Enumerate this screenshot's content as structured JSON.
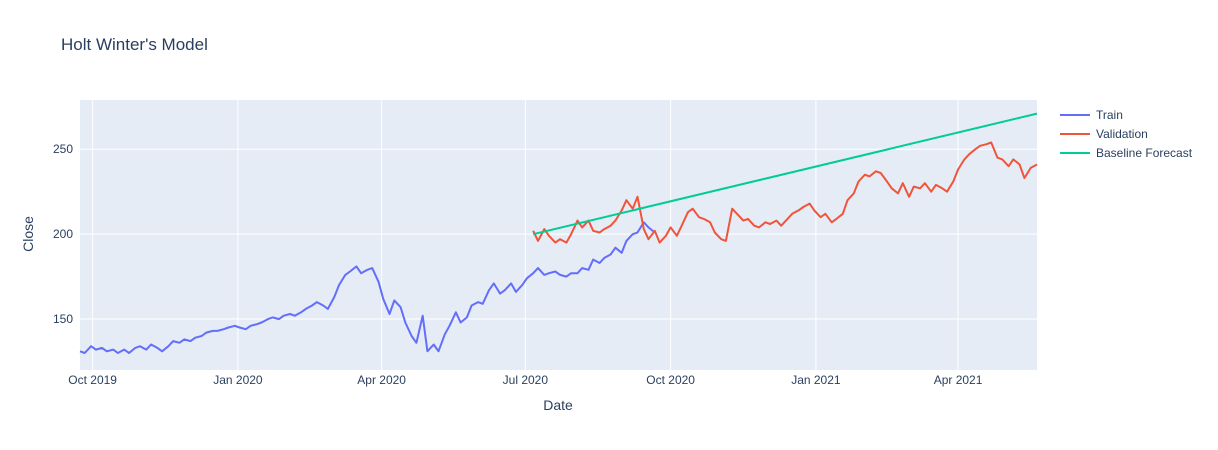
{
  "chart_data": {
    "type": "line",
    "title": "Holt Winter's Model",
    "xlabel": "Date",
    "ylabel": "Close",
    "xlim": [
      "2019-09-23",
      "2021-05-21"
    ],
    "ylim": [
      120,
      279
    ],
    "grid": true,
    "legend_position": "top-right, outside plot",
    "background_color": "#E5ECF6",
    "x_ticks": [
      {
        "date": "2019-10-01",
        "label": "Oct 2019"
      },
      {
        "date": "2020-01-01",
        "label": "Jan 2020"
      },
      {
        "date": "2020-04-01",
        "label": "Apr 2020"
      },
      {
        "date": "2020-07-01",
        "label": "Jul 2020"
      },
      {
        "date": "2020-10-01",
        "label": "Oct 2020"
      },
      {
        "date": "2021-01-01",
        "label": "Jan 2021"
      },
      {
        "date": "2021-04-01",
        "label": "Apr 2021"
      }
    ],
    "y_ticks": [
      {
        "value": 150,
        "label": "150"
      },
      {
        "value": 200,
        "label": "200"
      },
      {
        "value": 250,
        "label": "250"
      }
    ],
    "series": [
      {
        "name": "Train",
        "color": "#636EFA",
        "points": [
          [
            "2019-09-23",
            131
          ],
          [
            "2019-09-26",
            130
          ],
          [
            "2019-09-30",
            134
          ],
          [
            "2019-10-03",
            132
          ],
          [
            "2019-10-07",
            133
          ],
          [
            "2019-10-10",
            131
          ],
          [
            "2019-10-14",
            132
          ],
          [
            "2019-10-17",
            130
          ],
          [
            "2019-10-21",
            132
          ],
          [
            "2019-10-24",
            130
          ],
          [
            "2019-10-28",
            133
          ],
          [
            "2019-10-31",
            134
          ],
          [
            "2019-11-04",
            132
          ],
          [
            "2019-11-07",
            135
          ],
          [
            "2019-11-11",
            133
          ],
          [
            "2019-11-14",
            131
          ],
          [
            "2019-11-18",
            134
          ],
          [
            "2019-11-21",
            137
          ],
          [
            "2019-11-25",
            136
          ],
          [
            "2019-11-28",
            138
          ],
          [
            "2019-12-02",
            137
          ],
          [
            "2019-12-05",
            139
          ],
          [
            "2019-12-09",
            140
          ],
          [
            "2019-12-12",
            142
          ],
          [
            "2019-12-16",
            143
          ],
          [
            "2019-12-19",
            143
          ],
          [
            "2019-12-23",
            144
          ],
          [
            "2019-12-26",
            145
          ],
          [
            "2019-12-30",
            146
          ],
          [
            "2020-01-02",
            145
          ],
          [
            "2020-01-06",
            144
          ],
          [
            "2020-01-09",
            146
          ],
          [
            "2020-01-13",
            147
          ],
          [
            "2020-01-16",
            148
          ],
          [
            "2020-01-20",
            150
          ],
          [
            "2020-01-23",
            151
          ],
          [
            "2020-01-27",
            150
          ],
          [
            "2020-01-30",
            152
          ],
          [
            "2020-02-03",
            153
          ],
          [
            "2020-02-06",
            152
          ],
          [
            "2020-02-10",
            154
          ],
          [
            "2020-02-13",
            156
          ],
          [
            "2020-02-17",
            158
          ],
          [
            "2020-02-20",
            160
          ],
          [
            "2020-02-24",
            158
          ],
          [
            "2020-02-27",
            156
          ],
          [
            "2020-03-02",
            163
          ],
          [
            "2020-03-05",
            170
          ],
          [
            "2020-03-09",
            176
          ],
          [
            "2020-03-12",
            178
          ],
          [
            "2020-03-16",
            181
          ],
          [
            "2020-03-19",
            177
          ],
          [
            "2020-03-23",
            179
          ],
          [
            "2020-03-26",
            180
          ],
          [
            "2020-03-30",
            172
          ],
          [
            "2020-04-02",
            162
          ],
          [
            "2020-04-06",
            153
          ],
          [
            "2020-04-09",
            161
          ],
          [
            "2020-04-13",
            157
          ],
          [
            "2020-04-16",
            148
          ],
          [
            "2020-04-20",
            140
          ],
          [
            "2020-04-23",
            136
          ],
          [
            "2020-04-27",
            152
          ],
          [
            "2020-04-30",
            131
          ],
          [
            "2020-05-04",
            135
          ],
          [
            "2020-05-07",
            131
          ],
          [
            "2020-05-11",
            141
          ],
          [
            "2020-05-14",
            146
          ],
          [
            "2020-05-18",
            154
          ],
          [
            "2020-05-21",
            148
          ],
          [
            "2020-05-25",
            151
          ],
          [
            "2020-05-28",
            158
          ],
          [
            "2020-06-01",
            160
          ],
          [
            "2020-06-04",
            159
          ],
          [
            "2020-06-08",
            167
          ],
          [
            "2020-06-11",
            171
          ],
          [
            "2020-06-15",
            165
          ],
          [
            "2020-06-18",
            167
          ],
          [
            "2020-06-22",
            171
          ],
          [
            "2020-06-25",
            166
          ],
          [
            "2020-06-29",
            170
          ],
          [
            "2020-07-02",
            174
          ],
          [
            "2020-07-06",
            177
          ],
          [
            "2020-07-09",
            180
          ],
          [
            "2020-07-13",
            176
          ],
          [
            "2020-07-16",
            177
          ],
          [
            "2020-07-20",
            178
          ],
          [
            "2020-07-23",
            176
          ],
          [
            "2020-07-27",
            175
          ],
          [
            "2020-07-30",
            177
          ],
          [
            "2020-08-03",
            177
          ],
          [
            "2020-08-06",
            180
          ],
          [
            "2020-08-10",
            179
          ],
          [
            "2020-08-13",
            185
          ],
          [
            "2020-08-17",
            183
          ],
          [
            "2020-08-20",
            186
          ],
          [
            "2020-08-24",
            188
          ],
          [
            "2020-08-27",
            192
          ],
          [
            "2020-08-31",
            189
          ],
          [
            "2020-09-03",
            196
          ],
          [
            "2020-09-07",
            200
          ],
          [
            "2020-09-10",
            201
          ],
          [
            "2020-09-14",
            207
          ],
          [
            "2020-09-17",
            204
          ],
          [
            "2020-09-21",
            201
          ]
        ]
      },
      {
        "name": "Validation",
        "color": "#EF553B",
        "points": [
          [
            "2020-07-06",
            202
          ],
          [
            "2020-07-09",
            196
          ],
          [
            "2020-07-13",
            203
          ],
          [
            "2020-07-16",
            199
          ],
          [
            "2020-07-20",
            195
          ],
          [
            "2020-07-23",
            197
          ],
          [
            "2020-07-27",
            195
          ],
          [
            "2020-07-30",
            200
          ],
          [
            "2020-08-03",
            208
          ],
          [
            "2020-08-06",
            204
          ],
          [
            "2020-08-10",
            208
          ],
          [
            "2020-08-13",
            202
          ],
          [
            "2020-08-17",
            201
          ],
          [
            "2020-08-20",
            203
          ],
          [
            "2020-08-24",
            205
          ],
          [
            "2020-08-27",
            208
          ],
          [
            "2020-08-31",
            214
          ],
          [
            "2020-09-03",
            220
          ],
          [
            "2020-09-07",
            215
          ],
          [
            "2020-09-10",
            222
          ],
          [
            "2020-09-14",
            203
          ],
          [
            "2020-09-17",
            197
          ],
          [
            "2020-09-21",
            202
          ],
          [
            "2020-09-24",
            195
          ],
          [
            "2020-09-28",
            199
          ],
          [
            "2020-10-01",
            204
          ],
          [
            "2020-10-05",
            199
          ],
          [
            "2020-10-08",
            205
          ],
          [
            "2020-10-12",
            213
          ],
          [
            "2020-10-15",
            215
          ],
          [
            "2020-10-19",
            210
          ],
          [
            "2020-10-22",
            209
          ],
          [
            "2020-10-26",
            207
          ],
          [
            "2020-10-29",
            201
          ],
          [
            "2020-11-02",
            197
          ],
          [
            "2020-11-05",
            196
          ],
          [
            "2020-11-09",
            215
          ],
          [
            "2020-11-12",
            212
          ],
          [
            "2020-11-16",
            208
          ],
          [
            "2020-11-19",
            209
          ],
          [
            "2020-11-23",
            205
          ],
          [
            "2020-11-26",
            204
          ],
          [
            "2020-11-30",
            207
          ],
          [
            "2020-12-03",
            206
          ],
          [
            "2020-12-07",
            208
          ],
          [
            "2020-12-10",
            205
          ],
          [
            "2020-12-14",
            209
          ],
          [
            "2020-12-17",
            212
          ],
          [
            "2020-12-21",
            214
          ],
          [
            "2020-12-24",
            216
          ],
          [
            "2020-12-28",
            218
          ],
          [
            "2020-12-31",
            214
          ],
          [
            "2021-01-04",
            210
          ],
          [
            "2021-01-07",
            212
          ],
          [
            "2021-01-11",
            207
          ],
          [
            "2021-01-14",
            209
          ],
          [
            "2021-01-18",
            212
          ],
          [
            "2021-01-21",
            220
          ],
          [
            "2021-01-25",
            224
          ],
          [
            "2021-01-28",
            231
          ],
          [
            "2021-02-01",
            235
          ],
          [
            "2021-02-04",
            234
          ],
          [
            "2021-02-08",
            237
          ],
          [
            "2021-02-11",
            236
          ],
          [
            "2021-02-15",
            231
          ],
          [
            "2021-02-18",
            227
          ],
          [
            "2021-02-22",
            224
          ],
          [
            "2021-02-25",
            230
          ],
          [
            "2021-03-01",
            222
          ],
          [
            "2021-03-04",
            228
          ],
          [
            "2021-03-08",
            227
          ],
          [
            "2021-03-11",
            230
          ],
          [
            "2021-03-15",
            225
          ],
          [
            "2021-03-18",
            229
          ],
          [
            "2021-03-22",
            227
          ],
          [
            "2021-03-25",
            225
          ],
          [
            "2021-03-29",
            231
          ],
          [
            "2021-04-01",
            238
          ],
          [
            "2021-04-05",
            244
          ],
          [
            "2021-04-08",
            247
          ],
          [
            "2021-04-12",
            250
          ],
          [
            "2021-04-15",
            252
          ],
          [
            "2021-04-19",
            253
          ],
          [
            "2021-04-22",
            254
          ],
          [
            "2021-04-26",
            245
          ],
          [
            "2021-04-29",
            244
          ],
          [
            "2021-05-03",
            240
          ],
          [
            "2021-05-06",
            244
          ],
          [
            "2021-05-10",
            241
          ],
          [
            "2021-05-13",
            233
          ],
          [
            "2021-05-17",
            239
          ],
          [
            "2021-05-21",
            241
          ]
        ]
      },
      {
        "name": "Baseline Forecast",
        "color": "#00CC96",
        "points": [
          [
            "2020-07-06",
            200
          ],
          [
            "2021-05-21",
            271
          ]
        ]
      }
    ]
  }
}
